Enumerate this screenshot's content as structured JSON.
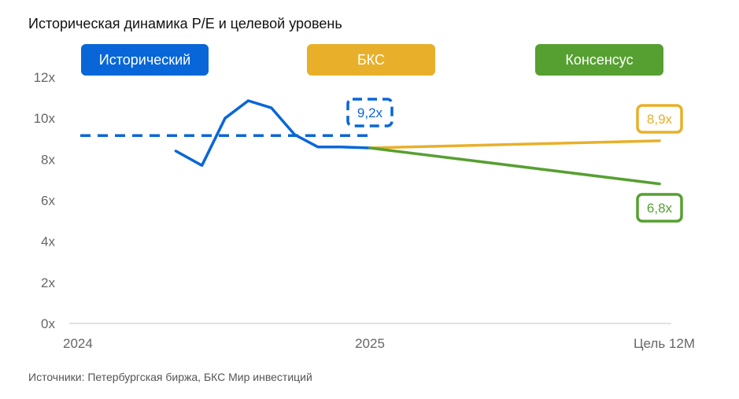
{
  "chart_data": {
    "type": "line",
    "title": "Историческая динамика P/E и целевой уровень",
    "ylim": [
      0,
      12
    ],
    "y_ticks": [
      {
        "value": 0,
        "label": "0x"
      },
      {
        "value": 2,
        "label": "2x"
      },
      {
        "value": 4,
        "label": "4x"
      },
      {
        "value": 6,
        "label": "6x"
      },
      {
        "value": 8,
        "label": "8x"
      },
      {
        "value": 10,
        "label": "10x"
      },
      {
        "value": 12,
        "label": "12x"
      }
    ],
    "x_ticks": [
      {
        "value": 0,
        "label": "2024"
      },
      {
        "value": 1,
        "label": "2025"
      },
      {
        "value": 2,
        "label": "Цель 12М"
      }
    ],
    "xlim": [
      0,
      2
    ],
    "legend": [
      "Исторический",
      "БКС",
      "Консенсус"
    ],
    "series": [
      {
        "name": "Исторический",
        "color": "#0866d8",
        "style": "solid",
        "points": [
          [
            0.33,
            8.4
          ],
          [
            0.42,
            7.7
          ],
          [
            0.5,
            10.0
          ],
          [
            0.58,
            10.85
          ],
          [
            0.66,
            10.5
          ],
          [
            0.74,
            9.2
          ],
          [
            0.82,
            8.6
          ],
          [
            0.9,
            8.6
          ],
          [
            1.0,
            8.55
          ]
        ]
      },
      {
        "name": "Средний исторический",
        "color": "#0866d8",
        "style": "dashed",
        "points": [
          [
            0.0,
            9.15
          ],
          [
            1.0,
            9.15
          ]
        ],
        "value_label": "9,2x"
      },
      {
        "name": "БКС",
        "color": "#e8b02a",
        "style": "solid",
        "points": [
          [
            1.0,
            8.55
          ],
          [
            2.0,
            8.9
          ]
        ],
        "value_label": "8,9x"
      },
      {
        "name": "Консенсус",
        "color": "#56a031",
        "style": "solid",
        "points": [
          [
            1.0,
            8.55
          ],
          [
            2.0,
            6.8
          ]
        ],
        "value_label": "6,8x"
      }
    ]
  },
  "legend_colors": {
    "hist": "#0866d8",
    "bks": "#e8b02a",
    "consensus": "#56a031"
  },
  "source_note": "Источники: Петербургская биржа, БКС Мир инвестиций"
}
